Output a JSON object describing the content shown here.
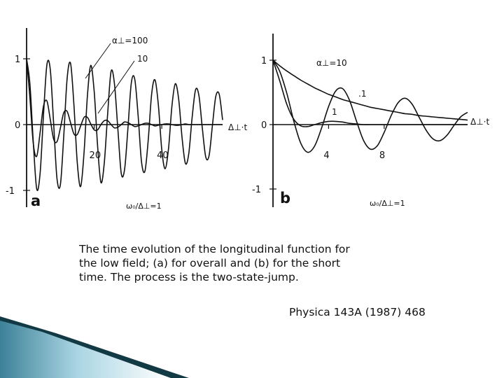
{
  "chart_data": [
    {
      "type": "line",
      "panel_label": "a",
      "title": "",
      "xlabel": "Δ⊥·t",
      "ylabel": "",
      "condition_label": "ω₀/Δ⊥=1",
      "xlim": [
        0,
        58
      ],
      "ylim": [
        -1.1,
        1.25
      ],
      "x_ticks": [
        20,
        40
      ],
      "y_ticks": [
        1,
        0,
        -1
      ],
      "grid": false,
      "series": [
        {
          "name": "α⊥=100",
          "x": [
            0,
            1,
            2,
            3,
            4,
            5,
            6,
            7,
            8,
            9,
            10,
            11,
            12,
            13,
            14,
            15,
            16,
            17,
            18,
            19,
            20,
            21,
            22,
            23,
            24,
            25,
            26,
            27,
            28,
            29,
            30,
            31,
            32,
            33,
            34,
            35,
            36,
            37,
            38,
            39,
            40,
            41,
            42,
            43,
            44,
            45,
            46,
            47,
            48,
            49,
            50,
            51,
            52,
            53,
            54,
            55,
            56,
            57,
            58
          ],
          "y": [
            1.0,
            0.61,
            -0.29,
            -0.98,
            -0.74,
            0.14,
            0.91,
            0.84,
            0.02,
            -0.82,
            -0.91,
            -0.17,
            0.7,
            0.93,
            0.3,
            -0.58,
            -0.94,
            -0.42,
            0.44,
            0.9,
            0.5,
            -0.32,
            -0.88,
            -0.58,
            0.18,
            0.81,
            0.62,
            -0.06,
            -0.74,
            -0.68,
            -0.05,
            0.64,
            0.69,
            0.14,
            -0.56,
            -0.71,
            -0.23,
            0.46,
            0.68,
            0.29,
            -0.38,
            -0.67,
            -0.36,
            0.28,
            0.62,
            0.39,
            -0.2,
            -0.59,
            -0.44,
            0.12,
            0.53,
            0.44,
            -0.05,
            -0.49,
            -0.47,
            -0.01,
            0.43,
            0.46,
            0.07
          ]
        },
        {
          "name": "10",
          "x": [
            0,
            1,
            2,
            3,
            4,
            5,
            6,
            7,
            8,
            9,
            10,
            11,
            12,
            13,
            14,
            15,
            16,
            17,
            18,
            19,
            20,
            21,
            22,
            23,
            24,
            25,
            26,
            27,
            28,
            29,
            30,
            31,
            32,
            33,
            34,
            35,
            36,
            37,
            38,
            39,
            40,
            41,
            42,
            43,
            44,
            45,
            46,
            47,
            48,
            49,
            50,
            51,
            52,
            53,
            54,
            55,
            56,
            57,
            58
          ],
          "y": [
            1.0,
            0.4,
            -0.3,
            -0.48,
            -0.12,
            0.28,
            0.36,
            0.08,
            -0.22,
            -0.26,
            -0.05,
            0.18,
            0.2,
            0.03,
            -0.14,
            -0.15,
            -0.02,
            0.11,
            0.11,
            0.01,
            -0.08,
            -0.08,
            0.0,
            0.06,
            0.06,
            0.0,
            -0.05,
            -0.04,
            0.0,
            0.04,
            0.03,
            0.0,
            -0.03,
            -0.02,
            0.0,
            0.02,
            0.02,
            0.0,
            -0.02,
            -0.01,
            0.0,
            0.01,
            0.01,
            0.0,
            -0.01,
            -0.01,
            0.0,
            0.01,
            0.0,
            0.0,
            0.0,
            0.0,
            0.0,
            0.0,
            0.0,
            0.0,
            0.0,
            0.0,
            0.0
          ]
        }
      ],
      "annotations": [
        "α⊥=100",
        "10"
      ]
    },
    {
      "type": "line",
      "panel_label": "b",
      "title": "",
      "xlabel": "Δ⊥·t",
      "ylabel": "",
      "condition_label": "ω₀/Δ⊥=1",
      "xlim": [
        0,
        14
      ],
      "ylim": [
        -1.1,
        1.25
      ],
      "x_ticks": [
        4,
        8
      ],
      "y_ticks": [
        1,
        0,
        -1
      ],
      "grid": false,
      "series": [
        {
          "name": "α⊥=10",
          "x": [
            0,
            0.5,
            1,
            1.5,
            2,
            2.5,
            3,
            3.5,
            4,
            4.5,
            5,
            5.5,
            6,
            6.5,
            7,
            7.5,
            8,
            8.5,
            9,
            9.5,
            10,
            10.5,
            11,
            11.5,
            12,
            12.5,
            13,
            13.5,
            14
          ],
          "y": [
            1.0,
            0.82,
            0.48,
            0.05,
            -0.29,
            -0.43,
            -0.33,
            -0.05,
            0.28,
            0.52,
            0.56,
            0.38,
            0.06,
            -0.24,
            -0.38,
            -0.33,
            -0.12,
            0.14,
            0.34,
            0.41,
            0.32,
            0.12,
            -0.08,
            -0.22,
            -0.25,
            -0.17,
            -0.02,
            0.12,
            0.19
          ]
        },
        {
          "name": "1",
          "x": [
            0,
            0.5,
            1,
            1.5,
            2,
            2.5,
            3,
            3.5,
            4,
            4.5,
            5,
            5.5,
            6,
            6.5,
            7,
            7.5,
            8,
            8.5,
            9,
            9.5,
            10,
            10.5,
            11,
            11.5,
            12,
            12.5,
            13,
            13.5,
            14
          ],
          "y": [
            1.0,
            0.67,
            0.31,
            0.08,
            -0.02,
            -0.03,
            0.0,
            0.03,
            0.05,
            0.05,
            0.04,
            0.02,
            0.01,
            0.0,
            0.0,
            0.0,
            0.0,
            0.0,
            0.0,
            0.0,
            0.0,
            0.0,
            0.0,
            0.0,
            0.0,
            0.0,
            0.0,
            0.0,
            0.0
          ]
        },
        {
          "name": ".1",
          "x": [
            0,
            0.5,
            1,
            1.5,
            2,
            2.5,
            3,
            3.5,
            4,
            4.5,
            5,
            5.5,
            6,
            6.5,
            7,
            7.5,
            8,
            8.5,
            9,
            9.5,
            10,
            10.5,
            11,
            11.5,
            12,
            12.5,
            13,
            13.5,
            14
          ],
          "y": [
            1.0,
            0.91,
            0.83,
            0.76,
            0.69,
            0.63,
            0.57,
            0.52,
            0.47,
            0.43,
            0.39,
            0.36,
            0.33,
            0.3,
            0.27,
            0.25,
            0.23,
            0.21,
            0.19,
            0.17,
            0.16,
            0.14,
            0.13,
            0.12,
            0.11,
            0.1,
            0.09,
            0.08,
            0.07
          ]
        }
      ],
      "annotations": [
        "α⊥=10",
        "1",
        ".1"
      ]
    }
  ],
  "caption": {
    "lines": [
      "The time evolution of the longitudinal function for",
      "the low field; (a) for overall and (b) for the short",
      "time. The process is the two-state-jump."
    ]
  },
  "citation": "Physica 143A (1987) 468",
  "colors": {
    "ink": "#111111",
    "corner_dark": "#123a45",
    "corner_mid": "#3c8198",
    "corner_light": "#a8d4e2"
  }
}
